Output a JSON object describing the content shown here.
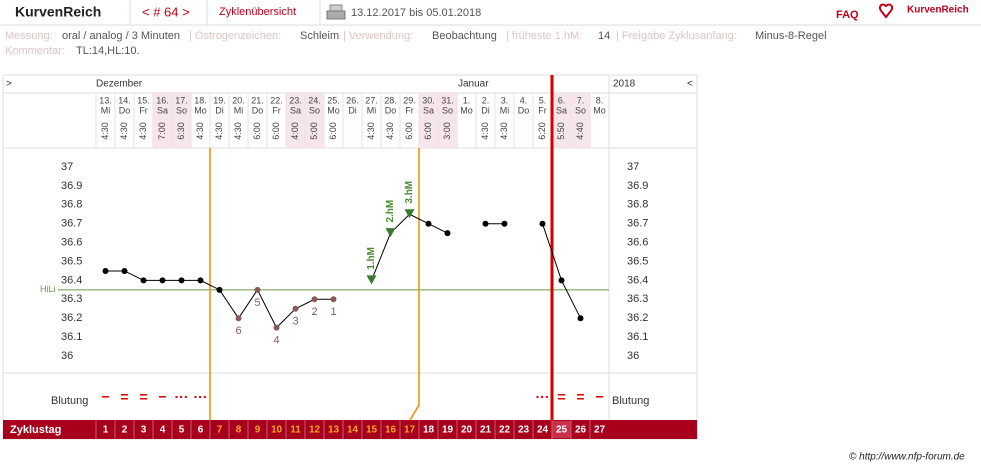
{
  "header": {
    "brand": "KurvenReich",
    "nav": "< # 64 >",
    "overview": "Zyklenübersicht",
    "date_range": "13.12.2017 bis 05.01.2018",
    "faq": "FAQ",
    "logo": "KurvenReich"
  },
  "info": {
    "items": [
      {
        "label": "Messung:",
        "value": "oral / analog / 3 Minuten"
      },
      {
        "label": "| Östrogenzeichen:",
        "value": "Schleim"
      },
      {
        "label": "| Verwendung:",
        "value": "Beobachtung"
      },
      {
        "label": "| früheste 1.hM:",
        "value": 14
      },
      {
        "label": "| Freigabe Zyklusanfang:",
        "value": "Minus-8-Regel"
      }
    ],
    "comment_label": "Kommentar:",
    "comment": "TL:14,HL:10."
  },
  "chart_data": {
    "type": "line",
    "nav_left": ">",
    "nav_right": "<",
    "months": [
      "Dezember",
      "Januar",
      "2018"
    ],
    "categories": [
      "13.",
      "14.",
      "15.",
      "16.",
      "17.",
      "18.",
      "19.",
      "20.",
      "21.",
      "22.",
      "23.",
      "24.",
      "25.",
      "26.",
      "27.",
      "28.",
      "29.",
      "30.",
      "31.",
      "1.",
      "2.",
      "3.",
      "4.",
      "5.",
      "6.",
      "7.",
      "8."
    ],
    "weekdays": [
      "Mi",
      "Do",
      "Fr",
      "Sa",
      "So",
      "Mo",
      "Di",
      "Mi",
      "Do",
      "Fr",
      "Sa",
      "So",
      "Mo",
      "Di",
      "Mi",
      "Do",
      "Fr",
      "Sa",
      "So",
      "Mo",
      "Di",
      "Mi",
      "Do",
      "Fr",
      "Sa",
      "So",
      "Mo"
    ],
    "times": [
      "4:30",
      "4:30",
      "4:30",
      "7:00",
      "6:30",
      "4:30",
      "4:30",
      "4:30",
      "6:00",
      "6:00",
      "4:00",
      "5:00",
      "6:00",
      null,
      "4:30",
      "4:30",
      "6:00",
      "6:00",
      "3:00",
      null,
      "4:30",
      "4:30",
      null,
      "6:20",
      "5:50",
      "4:40",
      null
    ],
    "values": [
      36.45,
      36.45,
      36.4,
      36.4,
      36.4,
      36.4,
      36.35,
      36.2,
      36.35,
      36.15,
      36.25,
      36.3,
      36.3,
      null,
      36.4,
      36.65,
      36.75,
      36.7,
      36.65,
      null,
      36.7,
      36.7,
      null,
      36.7,
      36.4,
      36.2,
      null
    ],
    "color": "#000000",
    "point_labels": [
      null,
      null,
      null,
      null,
      null,
      null,
      null,
      6,
      5,
      4,
      3,
      2,
      1,
      null,
      null,
      null,
      null,
      null,
      null,
      null,
      null,
      null,
      null,
      null,
      null,
      null,
      null
    ],
    "peak_labels": [
      null,
      null,
      null,
      null,
      null,
      null,
      null,
      null,
      null,
      null,
      null,
      null,
      null,
      null,
      "1.hM",
      "2.hM",
      "3.hM",
      null,
      null,
      null,
      null,
      null,
      null,
      null,
      null,
      null,
      null
    ],
    "hili": {
      "label": "HiLi",
      "value": 36.35,
      "color": "#6a9a40"
    },
    "ylim": [
      36,
      37
    ],
    "yticks": [
      37,
      36.9,
      36.8,
      36.7,
      36.6,
      36.5,
      36.4,
      36.3,
      36.2,
      36.1,
      36
    ],
    "grid": false,
    "bleeding_label": "Blutung",
    "bleeding": [
      "−",
      "=",
      "=",
      "−",
      "···",
      "···",
      null,
      null,
      null,
      null,
      null,
      null,
      null,
      null,
      null,
      null,
      null,
      null,
      null,
      null,
      null,
      null,
      null,
      "···",
      "=",
      "=",
      "−"
    ],
    "cycle_day_label": "Zyklustag",
    "cycle_days": [
      1,
      2,
      3,
      4,
      5,
      6,
      7,
      8,
      9,
      10,
      11,
      12,
      13,
      14,
      15,
      16,
      17,
      18,
      19,
      20,
      21,
      22,
      23,
      24,
      25,
      26,
      27
    ]
  },
  "footer": "© http://www.nfp-forum.de"
}
